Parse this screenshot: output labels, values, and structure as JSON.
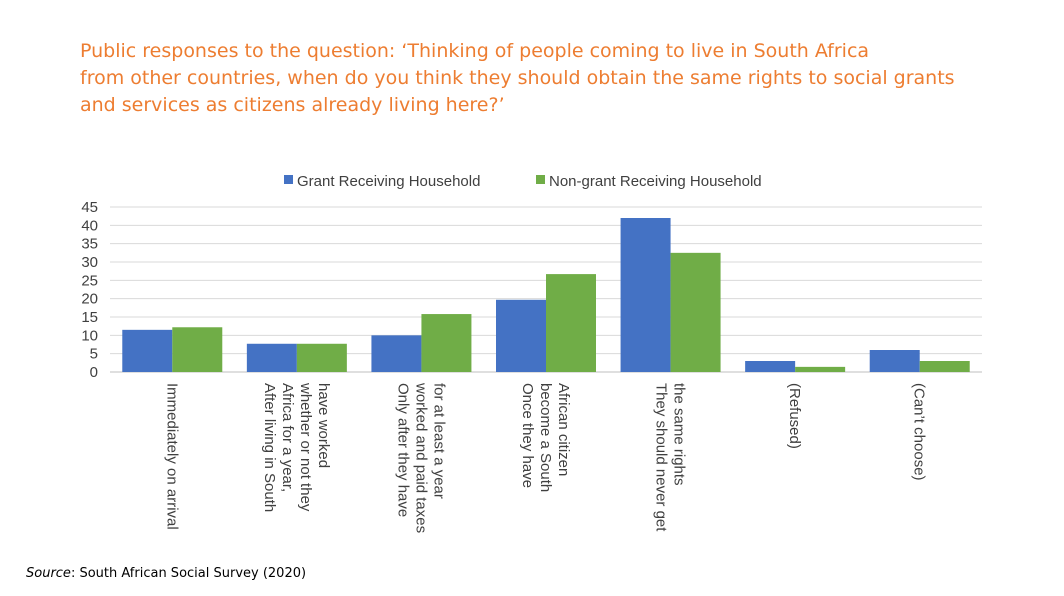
{
  "title_lines": [
    "Public responses to the question: ‘Thinking of people coming to live in South Africa",
    "from other countries, when do you think they should obtain the same rights to social grants",
    "and services as citizens already living here?’"
  ],
  "source": {
    "label": "Source",
    "text": ": South African Social Survey (2020)"
  },
  "colors": {
    "title": "#ED7D31",
    "series1": "#4472C4",
    "series2": "#70AD47"
  },
  "chart_data": {
    "type": "bar",
    "title": "Public responses to the question: ‘Thinking of people coming to live in South Africa from other countries, when do you think they should obtain the same rights to social grants and services as citizens already living here?’",
    "categories": [
      [
        "Immediately on arrival"
      ],
      [
        "After living in South",
        "Africa for a year,",
        "whether or not they",
        "have worked"
      ],
      [
        "Only after they have",
        "worked and paid taxes",
        "for at least a year"
      ],
      [
        "Once they have",
        "become a South",
        "African citizen"
      ],
      [
        "They should never get",
        "the same rights"
      ],
      [
        "(Refused)"
      ],
      [
        "(Can’t choose)"
      ]
    ],
    "series": [
      {
        "name": "Grant Receiving Household",
        "values": [
          11.5,
          7.7,
          10,
          19.7,
          42,
          3,
          6
        ]
      },
      {
        "name": "Non-grant Receiving Household",
        "values": [
          12.2,
          7.7,
          15.8,
          26.7,
          32.5,
          1.4,
          3
        ]
      }
    ],
    "yticks": [
      "0",
      "5",
      "10",
      "15",
      "20",
      "25",
      "30",
      "35",
      "40",
      "45"
    ],
    "ylim": [
      0,
      45
    ],
    "xlabel": "",
    "ylabel": "",
    "grid": true,
    "legend_position": "top"
  }
}
